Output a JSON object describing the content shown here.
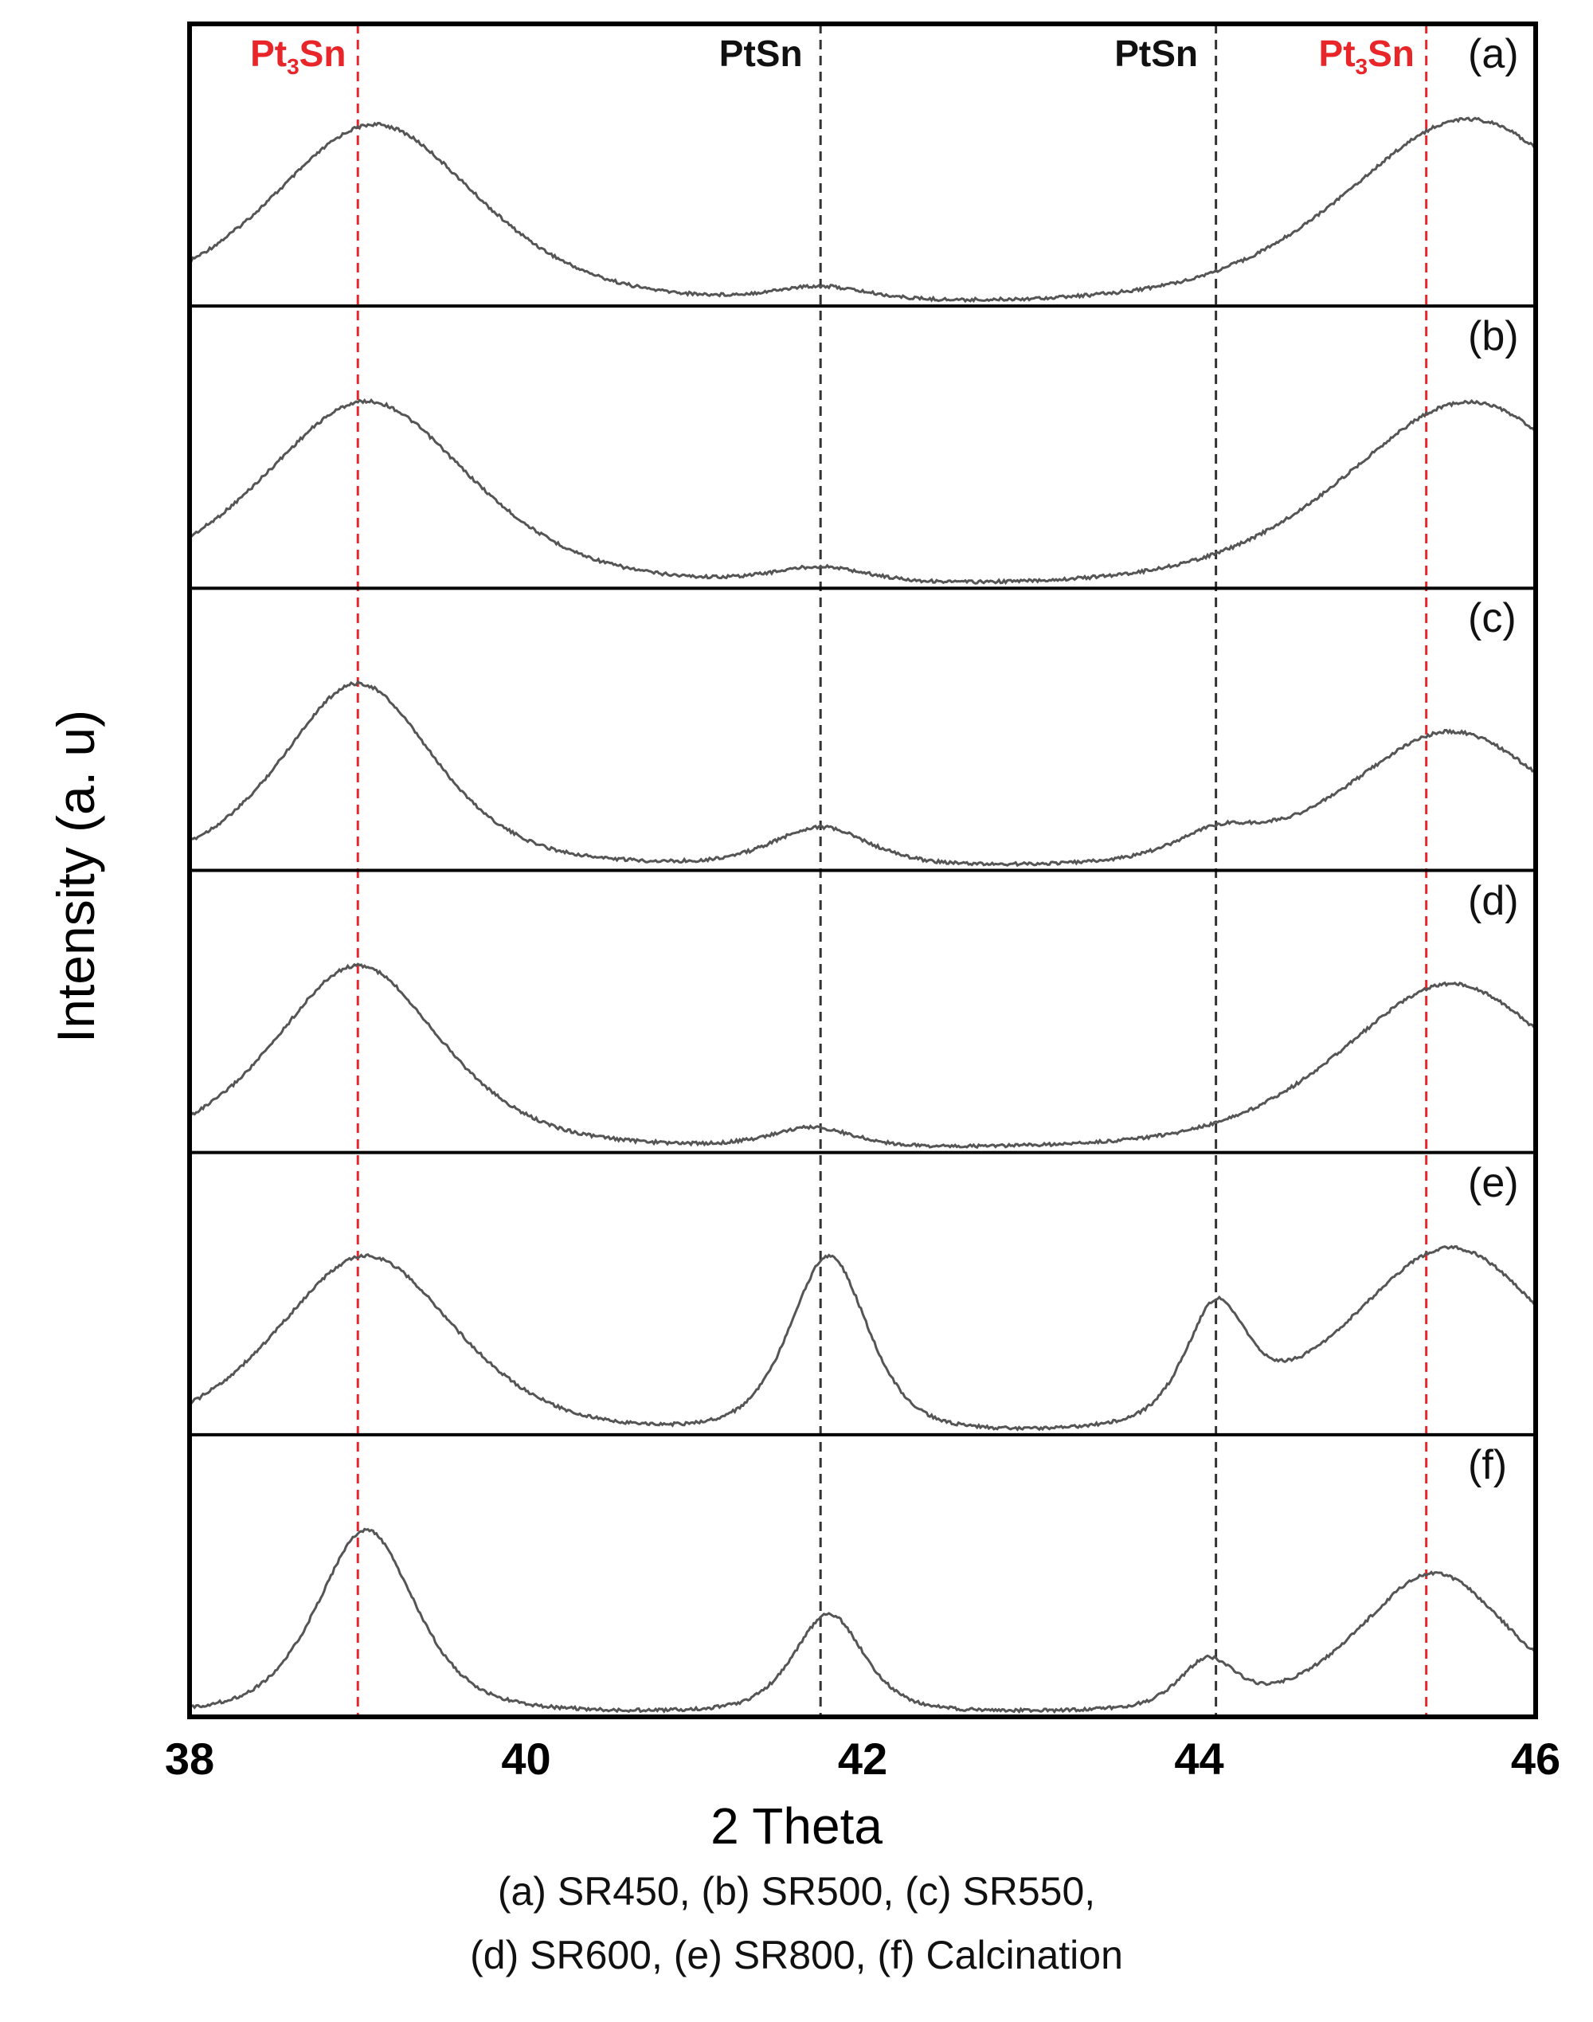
{
  "chart_data": {
    "type": "line",
    "title": "",
    "xlabel": "2 Theta",
    "ylabel": "Intensity (a. u)",
    "xlim": [
      38,
      46
    ],
    "x_ticks": [
      38,
      40,
      42,
      44,
      46
    ],
    "grid": false,
    "legend_position": "caption below axis",
    "reference_lines": [
      {
        "x": 39.0,
        "label": "Pt3Sn",
        "color": "#e8262a",
        "style": "dashed"
      },
      {
        "x": 41.75,
        "label": "PtSn",
        "color": "#333333",
        "style": "dashed"
      },
      {
        "x": 44.1,
        "label": "PtSn",
        "color": "#333333",
        "style": "dashed"
      },
      {
        "x": 45.35,
        "label": "Pt3Sn",
        "color": "#e8262a",
        "style": "dashed"
      }
    ],
    "series": [
      {
        "name": "(a) SR450",
        "label": "(a)",
        "baseline": 0.05,
        "peaks": [
          {
            "center": 39.1,
            "height": 0.62,
            "width": 0.75
          },
          {
            "center": 41.75,
            "height": 0.05,
            "width": 0.35
          },
          {
            "center": 45.6,
            "height": 0.64,
            "width": 0.9
          }
        ]
      },
      {
        "name": "(b) SR500",
        "label": "(b)",
        "baseline": 0.06,
        "peaks": [
          {
            "center": 39.05,
            "height": 0.68,
            "width": 0.75
          },
          {
            "center": 41.75,
            "height": 0.06,
            "width": 0.35
          },
          {
            "center": 45.6,
            "height": 0.68,
            "width": 0.9
          }
        ]
      },
      {
        "name": "(c) SR550",
        "label": "(c)",
        "baseline": 0.05,
        "peaks": [
          {
            "center": 39.0,
            "height": 0.75,
            "width": 0.55
          },
          {
            "center": 41.75,
            "height": 0.16,
            "width": 0.35
          },
          {
            "center": 44.1,
            "height": 0.1,
            "width": 0.3
          },
          {
            "center": 45.5,
            "height": 0.56,
            "width": 0.75
          }
        ]
      },
      {
        "name": "(d) SR600",
        "label": "(d)",
        "baseline": 0.05,
        "peaks": [
          {
            "center": 39.0,
            "height": 0.64,
            "width": 0.6
          },
          {
            "center": 41.7,
            "height": 0.07,
            "width": 0.3
          },
          {
            "center": 45.5,
            "height": 0.58,
            "width": 0.8
          }
        ]
      },
      {
        "name": "(e) SR800",
        "label": "(e)",
        "baseline": 0.04,
        "peaks": [
          {
            "center": 39.05,
            "height": 0.5,
            "width": 0.65
          },
          {
            "center": 41.8,
            "height": 0.48,
            "width": 0.28
          },
          {
            "center": 44.1,
            "height": 0.3,
            "width": 0.22
          },
          {
            "center": 45.5,
            "height": 0.52,
            "width": 0.75
          }
        ]
      },
      {
        "name": "(f) Calcination",
        "label": "(f)",
        "baseline": 0.04,
        "peaks": [
          {
            "center": 39.05,
            "height": 0.78,
            "width": 0.35
          },
          {
            "center": 41.8,
            "height": 0.42,
            "width": 0.25
          },
          {
            "center": 44.05,
            "height": 0.2,
            "width": 0.2
          },
          {
            "center": 45.4,
            "height": 0.6,
            "width": 0.55
          }
        ]
      }
    ]
  },
  "axis": {
    "x_title": "2 Theta",
    "y_title": "Intensity (a. u)",
    "ticks": [
      "38",
      "40",
      "42",
      "44",
      "46"
    ]
  },
  "phase_labels": [
    {
      "base": "Pt",
      "sub": "3",
      "rest": "Sn",
      "color": "#e8262a"
    },
    {
      "base": "PtSn",
      "sub": "",
      "rest": "",
      "color": "#111111"
    },
    {
      "base": "PtSn",
      "sub": "",
      "rest": "",
      "color": "#111111"
    },
    {
      "base": "Pt",
      "sub": "3",
      "rest": "Sn",
      "color": "#e8262a"
    }
  ],
  "panel_labels": [
    "(a)",
    "(b)",
    "(c)",
    "(d)",
    "(e)",
    "(f)"
  ],
  "caption": {
    "line1": "(a) SR450, (b) SR500, (c) SR550,",
    "line2": "(d) SR600, (e) SR800, (f) Calcination"
  },
  "colors": {
    "curve": "#555555",
    "frame": "#000000",
    "pt3sn": "#e8262a",
    "ptsn": "#333333"
  }
}
